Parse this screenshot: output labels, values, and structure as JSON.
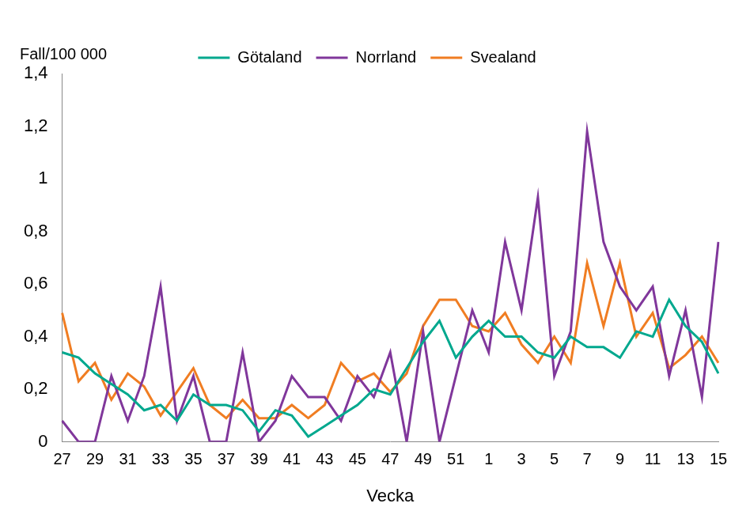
{
  "chart_data": {
    "type": "line",
    "xlabel": "Vecka",
    "ylabel": "Fall/100 000",
    "categories": [
      "27",
      null,
      "29",
      null,
      "31",
      null,
      "33",
      null,
      "35",
      null,
      "37",
      null,
      "39",
      null,
      "41",
      null,
      "43",
      null,
      "45",
      null,
      "47",
      null,
      "49",
      null,
      "51",
      null,
      "1",
      null,
      "3",
      null,
      "5",
      null,
      "7",
      null,
      "9",
      null,
      "11",
      null,
      "13",
      null,
      "15"
    ],
    "series": [
      {
        "name": "Götaland",
        "color": "#00a88e",
        "values": [
          0.34,
          0.32,
          0.26,
          0.22,
          0.18,
          0.12,
          0.14,
          0.08,
          0.18,
          0.14,
          0.14,
          0.12,
          0.04,
          0.12,
          0.1,
          0.02,
          0.06,
          0.1,
          0.14,
          0.2,
          0.18,
          0.28,
          0.38,
          0.46,
          0.32,
          0.4,
          0.46,
          0.4,
          0.4,
          0.34,
          0.32,
          0.4,
          0.36,
          0.36,
          0.32,
          0.42,
          0.4,
          0.54,
          0.44,
          0.38,
          0.26
        ]
      },
      {
        "name": "Norrland",
        "color": "#80379b",
        "values": [
          0.08,
          0,
          0,
          0.25,
          0.08,
          0.25,
          0.59,
          0.08,
          0.25,
          0,
          0,
          0.34,
          0,
          0.08,
          0.25,
          0.17,
          0.17,
          0.08,
          0.25,
          0.17,
          0.34,
          0,
          0.42,
          0,
          0.25,
          0.5,
          0.34,
          0.76,
          0.5,
          0.93,
          0.25,
          0.42,
          1.18,
          0.76,
          0.59,
          0.5,
          0.59,
          0.25,
          0.5,
          0.17,
          0.76
        ]
      },
      {
        "name": "Svealand",
        "color": "#f07d22",
        "values": [
          0.49,
          0.23,
          0.3,
          0.16,
          0.26,
          0.21,
          0.1,
          0.19,
          0.28,
          0.14,
          0.09,
          0.16,
          0.09,
          0.09,
          0.14,
          0.09,
          0.14,
          0.3,
          0.23,
          0.26,
          0.19,
          0.26,
          0.44,
          0.54,
          0.54,
          0.44,
          0.42,
          0.49,
          0.37,
          0.3,
          0.4,
          0.3,
          0.68,
          0.44,
          0.68,
          0.4,
          0.49,
          0.28,
          0.33,
          0.4,
          0.3
        ]
      }
    ],
    "ylim": [
      0,
      1.4
    ],
    "yticks": [
      0,
      {
        "value": 0.2,
        "label": "0,2"
      },
      {
        "value": 0.4,
        "label": "0,4"
      },
      {
        "value": 0.6,
        "label": "0,6"
      },
      {
        "value": 0.8,
        "label": "0,8"
      },
      1,
      {
        "value": 1.2,
        "label": "1,2"
      },
      {
        "value": 1.4,
        "label": "1,4"
      }
    ],
    "grid": false,
    "legend": "top"
  }
}
